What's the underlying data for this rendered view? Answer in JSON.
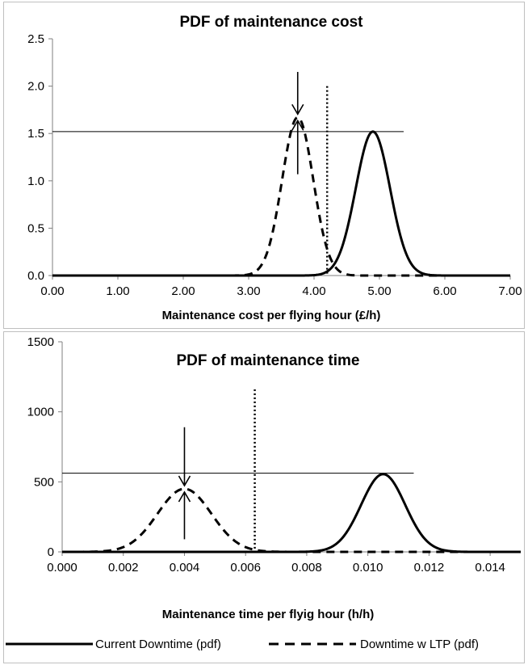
{
  "chart_data": [
    {
      "type": "line",
      "title": "PDF of maintenance cost",
      "xlabel": "Maintenance cost per flying hour (£/h)",
      "ylabel": "",
      "xlim": [
        0,
        7
      ],
      "ylim": [
        0,
        2.5
      ],
      "xticks": [
        "0.00",
        "1.00",
        "2.00",
        "3.00",
        "4.00",
        "5.00",
        "6.00",
        "7.00"
      ],
      "yticks": [
        "0.0",
        "0.5",
        "1.0",
        "1.5",
        "2.0",
        "2.5"
      ],
      "grid": false,
      "series": [
        {
          "name": "Current Downtime (pdf)",
          "style": "solid",
          "distribution": "normal",
          "mean": 4.9,
          "sd": 0.262,
          "peak": 1.52
        },
        {
          "name": "Downtime w LTP (pdf)",
          "style": "dashed",
          "distribution": "normal",
          "mean": 3.75,
          "sd": 0.238,
          "peak": 1.67
        }
      ],
      "annotations": {
        "threshold_x": 4.2,
        "threshold_y_top": 2.0,
        "reference_line": {
          "y": 1.52,
          "x_from": 0,
          "x_to": 5.37
        },
        "arrow_x": 3.75,
        "arrow_down_from": 2.15,
        "arrow_up_from": 1.07
      }
    },
    {
      "type": "line",
      "title": "PDF of maintenance time",
      "xlabel": "Maintenance time per flyig hour (h/h)",
      "ylabel": "",
      "xlim": [
        0,
        0.015
      ],
      "ylim": [
        0,
        1500
      ],
      "xticks": [
        "0.000",
        "0.002",
        "0.004",
        "0.006",
        "0.008",
        "0.010",
        "0.012",
        "0.014"
      ],
      "yticks": [
        "0",
        "500",
        "1000",
        "1500"
      ],
      "grid": false,
      "series": [
        {
          "name": "Current Downtime (pdf)",
          "style": "solid",
          "distribution": "normal",
          "mean": 0.0105,
          "sd": 0.00072,
          "peak": 555
        },
        {
          "name": "Downtime w LTP (pdf)",
          "style": "dashed",
          "distribution": "normal",
          "mean": 0.004,
          "sd": 0.00088,
          "peak": 450
        }
      ],
      "annotations": {
        "threshold_x": 0.0063,
        "threshold_y_top": 1160,
        "reference_line": {
          "y": 562,
          "x_from": 0,
          "x_to": 0.0115
        },
        "arrow_x": 0.004,
        "arrow_down_from": 890,
        "arrow_up_from": 90
      }
    }
  ],
  "legend": [
    {
      "label": "Current Downtime (pdf)",
      "style": "solid"
    },
    {
      "label": "Downtime w LTP (pdf)",
      "style": "dashed"
    }
  ]
}
